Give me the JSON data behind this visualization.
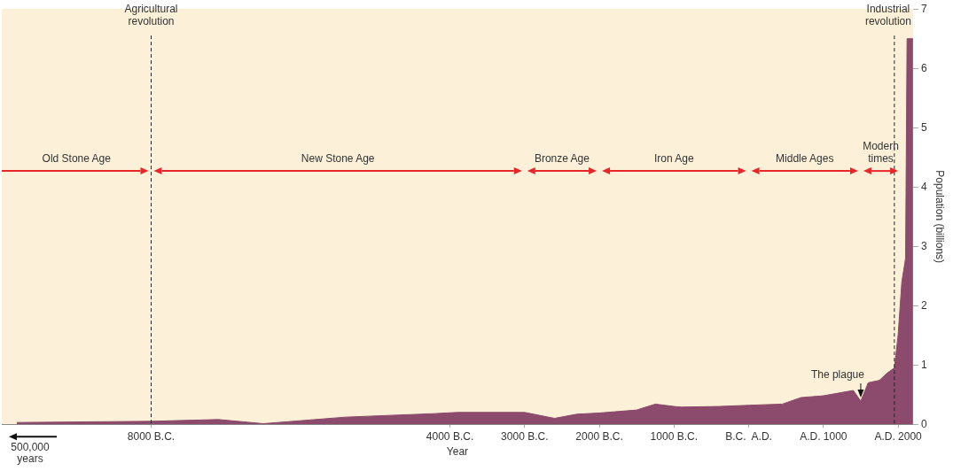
{
  "chart_data": {
    "type": "area",
    "xlabel": "Year",
    "ylabel": "Population (billions)",
    "color": "#8c4a6c",
    "x": [
      -9800,
      -8000,
      -7100,
      -6500,
      -5400,
      -4200,
      -3900,
      -3000,
      -2600,
      -2300,
      -2000,
      -1500,
      -1250,
      -1000,
      -900,
      -400,
      0,
      450,
      700,
      1000,
      1400,
      1500,
      1600,
      1750,
      1850,
      1950,
      2000,
      2050,
      2100,
      2120,
      2200
    ],
    "values": [
      0.03,
      0.05,
      0.08,
      0.01,
      0.12,
      0.18,
      0.2,
      0.2,
      0.1,
      0.17,
      0.19,
      0.24,
      0.34,
      0.3,
      0.29,
      0.3,
      0.32,
      0.34,
      0.45,
      0.48,
      0.57,
      0.39,
      0.7,
      0.74,
      0.86,
      0.95,
      1.5,
      2.4,
      2.8,
      6.5,
      6.5
    ],
    "xlim": [
      -10000,
      2200
    ],
    "xticks": [
      {
        "value": -8000,
        "label": "8000 B.C."
      },
      {
        "value": -4000,
        "label": "4000 B.C."
      },
      {
        "value": -3000,
        "label": "3000 B.C."
      },
      {
        "value": -2000,
        "label": "2000 B.C."
      },
      {
        "value": -1000,
        "label": "1000 B.C."
      },
      {
        "value": 0,
        "label": "B.C.  A.D."
      },
      {
        "value": 1000,
        "label": "A.D. 1000"
      },
      {
        "value": 2000,
        "label": "A.D. 2000"
      }
    ],
    "ylim": [
      0,
      7
    ],
    "yticks": [
      0,
      1,
      2,
      3,
      4,
      5,
      6,
      7
    ],
    "grid": false,
    "legend": false,
    "marker": "none",
    "ref_lines": [
      {
        "axis": "x",
        "value": -8000,
        "label": "Agricultural revolution",
        "line_style": "dashed",
        "color": "#222222"
      },
      {
        "axis": "x",
        "value": 1950,
        "label": "Industrial revolution",
        "line_style": "dashed",
        "color": "#222222"
      }
    ],
    "annotations": [
      "Old Stone Age",
      "New Stone Age",
      "Bronze Age",
      "Iron Age",
      "Middle Ages",
      "Modern times",
      {
        "text": "The plague",
        "x": 1500,
        "y": 0.39
      },
      "500,000 years"
    ]
  }
}
